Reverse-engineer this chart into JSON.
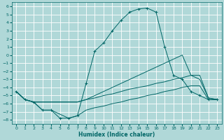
{
  "xlabel": "Humidex (Indice chaleur)",
  "bg_color": "#b0d8d8",
  "grid_color": "#ffffff",
  "line_color": "#006666",
  "xlim": [
    -0.5,
    23.5
  ],
  "ylim": [
    -8.5,
    6.5
  ],
  "xticks": [
    0,
    1,
    2,
    3,
    4,
    5,
    6,
    7,
    8,
    9,
    10,
    11,
    12,
    13,
    14,
    15,
    16,
    17,
    18,
    19,
    20,
    21,
    22,
    23
  ],
  "yticks": [
    6,
    5,
    4,
    3,
    2,
    1,
    0,
    -1,
    -2,
    -3,
    -4,
    -5,
    -6,
    -7,
    -8
  ],
  "series1_x": [
    0,
    1,
    2,
    3,
    4,
    5,
    6,
    7,
    8,
    9,
    10,
    11,
    12,
    13,
    14,
    15,
    16,
    17,
    18,
    19,
    20,
    21,
    22,
    23
  ],
  "series1_y": [
    -4.5,
    -5.5,
    -5.8,
    -6.8,
    -6.8,
    -7.8,
    -7.8,
    -7.5,
    -3.5,
    0.5,
    1.5,
    3.0,
    4.3,
    5.3,
    5.7,
    5.8,
    5.3,
    1.0,
    -2.5,
    -3.0,
    -4.5,
    -5.0,
    -5.5,
    -5.5
  ],
  "series2_x": [
    0,
    1,
    2,
    3,
    4,
    5,
    6,
    7,
    8,
    9,
    10,
    11,
    12,
    13,
    14,
    15,
    16,
    17,
    18,
    19,
    20,
    21,
    22,
    23
  ],
  "series2_y": [
    -4.5,
    -5.5,
    -5.8,
    -5.8,
    -5.8,
    -5.8,
    -5.8,
    -5.8,
    -5.5,
    -5.3,
    -5.0,
    -4.8,
    -4.5,
    -4.2,
    -4.0,
    -3.8,
    -3.5,
    -3.3,
    -3.0,
    -2.8,
    -2.5,
    -2.5,
    -5.3,
    -5.5
  ],
  "series3_x": [
    0,
    1,
    2,
    3,
    4,
    5,
    6,
    7,
    8,
    9,
    10,
    11,
    12,
    13,
    14,
    15,
    16,
    17,
    18,
    19,
    20,
    21,
    22,
    23
  ],
  "series3_y": [
    -4.5,
    -5.5,
    -5.8,
    -5.8,
    -5.8,
    -5.8,
    -5.8,
    -5.8,
    -5.5,
    -5.0,
    -4.5,
    -4.0,
    -3.5,
    -3.0,
    -2.5,
    -2.0,
    -1.5,
    -1.0,
    -0.5,
    0.0,
    -2.5,
    -3.0,
    -5.3,
    -5.5
  ],
  "series4_x": [
    0,
    1,
    2,
    3,
    4,
    5,
    6,
    7,
    8,
    9,
    10,
    11,
    12,
    13,
    14,
    15,
    16,
    17,
    18,
    19,
    20,
    21,
    22,
    23
  ],
  "series4_y": [
    -4.5,
    -5.5,
    -5.8,
    -6.8,
    -6.8,
    -7.3,
    -7.8,
    -7.5,
    -6.8,
    -6.5,
    -6.3,
    -6.0,
    -5.8,
    -5.5,
    -5.3,
    -5.0,
    -4.8,
    -4.5,
    -4.3,
    -4.0,
    -3.8,
    -3.8,
    -5.5,
    -5.5
  ]
}
